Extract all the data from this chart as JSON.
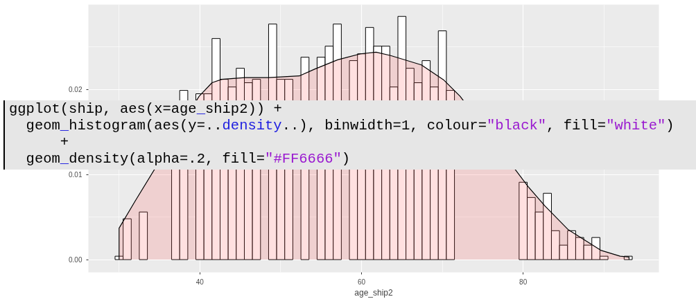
{
  "chart_data": {
    "type": "histogram",
    "xlabel": "age_ship2",
    "xlim": [
      26.2,
      96.8
    ],
    "ylim": [
      -0.0015,
      0.03
    ],
    "xticks": [
      40,
      60,
      80
    ],
    "yticks": [
      {
        "value": 0,
        "label": "0.00"
      },
      {
        "value": 0.01,
        "label": "0.01"
      },
      {
        "value": 0.02,
        "label": "0.02"
      }
    ],
    "grid": true,
    "series": [
      {
        "color": "#ffffff",
        "bins": [
          29.5,
          30.5,
          31.5,
          32.5,
          33.5,
          34.5,
          35.5,
          36.5,
          37.5,
          38.5,
          39.5,
          40.5,
          41.5,
          42.5,
          43.5,
          44.5,
          45.5,
          46.5,
          47.5,
          48.5,
          49.5,
          50.5,
          51.5,
          52.5,
          53.5,
          54.5,
          55.5,
          56.5,
          57.5,
          58.5,
          59.5,
          60.5,
          61.5,
          62.5,
          63.5,
          64.5,
          65.5,
          66.5,
          67.5,
          68.5,
          69.5,
          70.5,
          71.5,
          72.5,
          73.5,
          74.5,
          75.5,
          76.5,
          77.5,
          78.5,
          79.5,
          80.5,
          81.5,
          82.5,
          83.5,
          84.5,
          85.5,
          86.5,
          87.5,
          88.5,
          89.5,
          90.5,
          91.5,
          92.5,
          93.5
        ],
        "values": [
          0.0004,
          0.0048,
          null,
          0.0056,
          null,
          null,
          null,
          0.0108,
          0.0199,
          null,
          0.0195,
          0.0195,
          0.026,
          0.0212,
          0.0203,
          0.0225,
          0.0208,
          0.0212,
          null,
          0.0277,
          0.0212,
          0.0212,
          null,
          0.0238,
          null,
          0.0238,
          0.0251,
          0.0277,
          null,
          0.0234,
          0.0242,
          0.0273,
          0.0251,
          0.0251,
          0.0203,
          0.0286,
          0.0225,
          0.0208,
          0.0234,
          0.0203,
          0.0269,
          0.0199,
          null,
          null,
          null,
          null,
          null,
          null,
          null,
          null,
          0.0091,
          0.0073,
          0.0056,
          0.0078,
          0.0034,
          0.0017,
          0.0034,
          0.0026,
          0.0017,
          0.0026,
          0.0004,
          0,
          0,
          0.0004
        ]
      },
      {
        "type": "area",
        "color": "#ff6666",
        "x": [
          30,
          32,
          39.9,
          41.5,
          42.7,
          45.6,
          48.5,
          52.3,
          54.2,
          57.05,
          59.9,
          61.8,
          63.6,
          67.4,
          70.2,
          72.2,
          80.6,
          82.7,
          85.6,
          87.6,
          89.6,
          92.0,
          93.1
        ],
        "values": [
          0.0037,
          0.0069,
          0.0192,
          0.0208,
          0.0212,
          0.0214,
          0.0214,
          0.0216,
          0.0224,
          0.0235,
          0.0242,
          0.0244,
          0.024,
          0.0229,
          0.0211,
          0.0192,
          0.0086,
          0.0063,
          0.0035,
          0.0023,
          0.0011,
          0.0004,
          0.0003
        ]
      }
    ],
    "annotations": [
      "ggplot(ship, aes(x=age_ship2)) +\n  geom_histogram(aes(y=..density..), binwidth=1, colour=\"black\", fill=\"white\")\n      +\n  geom_density(alpha=.2, fill=\"#FF6666\")"
    ]
  }
}
